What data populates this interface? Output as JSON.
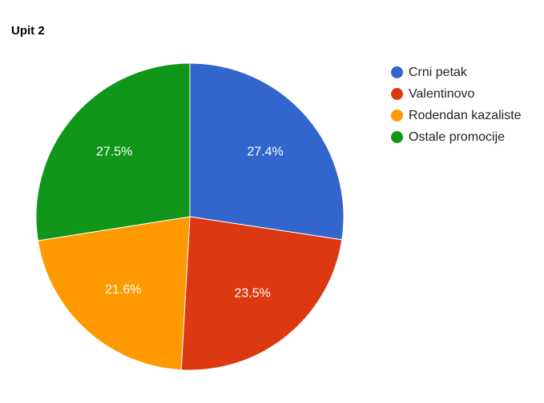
{
  "chart_data": {
    "type": "pie",
    "title": "Upit 2",
    "categories": [
      "Crni petak",
      "Valentinovo",
      "Rodendan kazaliste",
      "Ostale promocije"
    ],
    "values": [
      27.4,
      23.5,
      21.6,
      27.5
    ],
    "value_labels": [
      "27.4%",
      "23.5%",
      "21.6%",
      "27.5%"
    ],
    "colors": [
      "#3366cc",
      "#dc3912",
      "#ff9900",
      "#109618"
    ],
    "legend_position": "right",
    "start_angle": "top, clockwise"
  }
}
